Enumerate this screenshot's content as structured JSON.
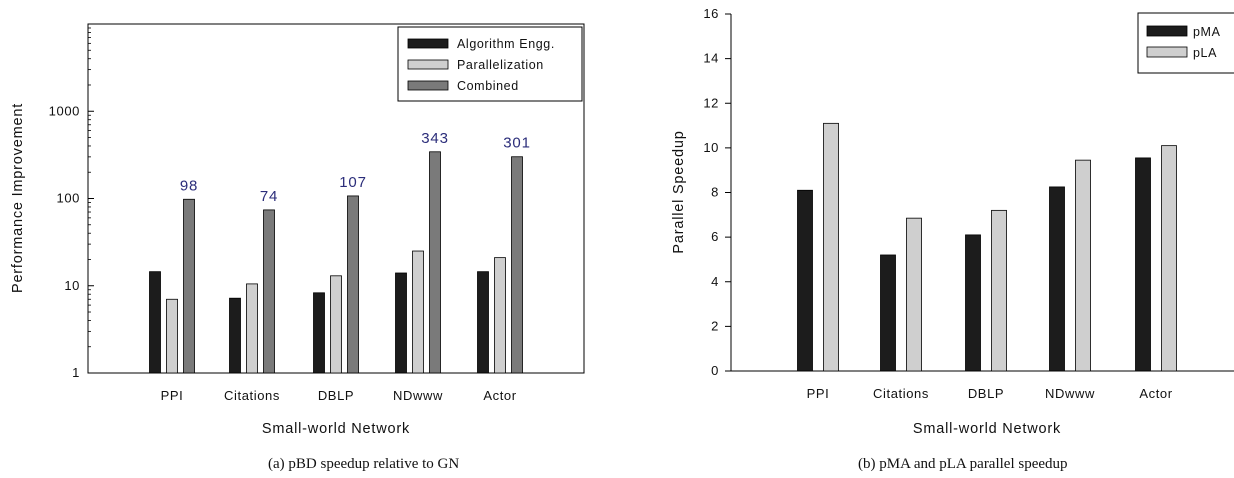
{
  "chart_data": [
    {
      "type": "bar",
      "caption": "(a)  pBD speedup relative to GN",
      "xlabel": "Small-world Network",
      "ylabel": "Performance Improvement",
      "yscale": "log",
      "ylim": [
        1,
        10000
      ],
      "yticks": [
        1,
        10,
        100,
        1000
      ],
      "yticklabels": [
        "1",
        "10",
        "100",
        "1000"
      ],
      "categories": [
        "PPI",
        "Citations",
        "DBLP",
        "NDwww",
        "Actor"
      ],
      "series": [
        {
          "name": "Algorithm Engg.",
          "color": "#1c1c1c",
          "values": [
            14.5,
            7.2,
            8.3,
            14,
            14.5
          ]
        },
        {
          "name": "Parallelization",
          "color": "#cfcfcf",
          "values": [
            7,
            10.5,
            13,
            25,
            21
          ]
        },
        {
          "name": "Combined",
          "color": "#7a7a7a",
          "values": [
            98,
            74,
            107,
            343,
            301
          ]
        }
      ],
      "data_labels": [
        "98",
        "74",
        "107",
        "343",
        "301"
      ],
      "legend": "top-right",
      "grid": false
    },
    {
      "type": "bar",
      "caption": "(b)  pMA and pLA parallel speedup",
      "xlabel": "Small-world Network",
      "ylabel": "Parallel Speedup",
      "ylim": [
        0,
        16
      ],
      "yticks": [
        0,
        2,
        4,
        6,
        8,
        10,
        12,
        14,
        16
      ],
      "yticklabels": [
        "0",
        "2",
        "4",
        "6",
        "8",
        "10",
        "12",
        "14",
        "16"
      ],
      "categories": [
        "PPI",
        "Citations",
        "DBLP",
        "NDwww",
        "Actor"
      ],
      "series": [
        {
          "name": "pMA",
          "color": "#1c1c1c",
          "values": [
            8.1,
            5.2,
            6.1,
            8.25,
            9.55
          ]
        },
        {
          "name": "pLA",
          "color": "#cfcfcf",
          "values": [
            11.1,
            6.85,
            7.2,
            9.45,
            10.1
          ]
        }
      ],
      "legend": "top-right",
      "grid": false
    }
  ]
}
